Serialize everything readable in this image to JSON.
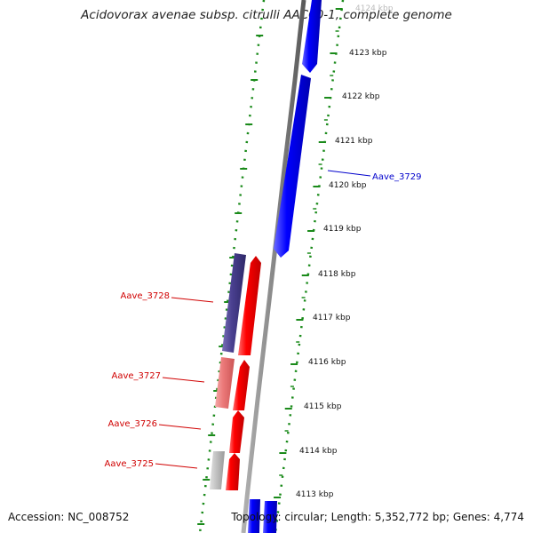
{
  "title": "Acidovorax avenae subsp. citrulli AAC00-1, complete genome",
  "accession": "Accession: NC_008752",
  "summary": "Topology: circular; Length: 5,352,772 bp; Genes: 4,774",
  "colors": {
    "backbone": "#888888",
    "scale_ticks": "#1a8a1a",
    "forward_gene": "#ff0000",
    "reverse_gene": "#0000ff",
    "dark_gene": "#4a4090",
    "label_red": "#d00000",
    "label_blue": "#0000cc"
  },
  "scale": {
    "unit": "kbp",
    "ticks": [
      {
        "label": "4124 kbp"
      },
      {
        "label": "4123 kbp"
      },
      {
        "label": "4122 kbp"
      },
      {
        "label": "4121 kbp"
      },
      {
        "label": "4120 kbp"
      },
      {
        "label": "4119 kbp"
      },
      {
        "label": "4118 kbp"
      },
      {
        "label": "4117 kbp"
      },
      {
        "label": "4116 kbp"
      },
      {
        "label": "4115 kbp"
      },
      {
        "label": "4114 kbp"
      },
      {
        "label": "4113 kbp"
      }
    ]
  },
  "gene_labels": [
    {
      "name": "Aave_3729",
      "color": "blue"
    },
    {
      "name": "Aave_3728",
      "color": "red"
    },
    {
      "name": "Aave_3727",
      "color": "red"
    },
    {
      "name": "Aave_3726",
      "color": "red"
    },
    {
      "name": "Aave_3725",
      "color": "red"
    }
  ]
}
